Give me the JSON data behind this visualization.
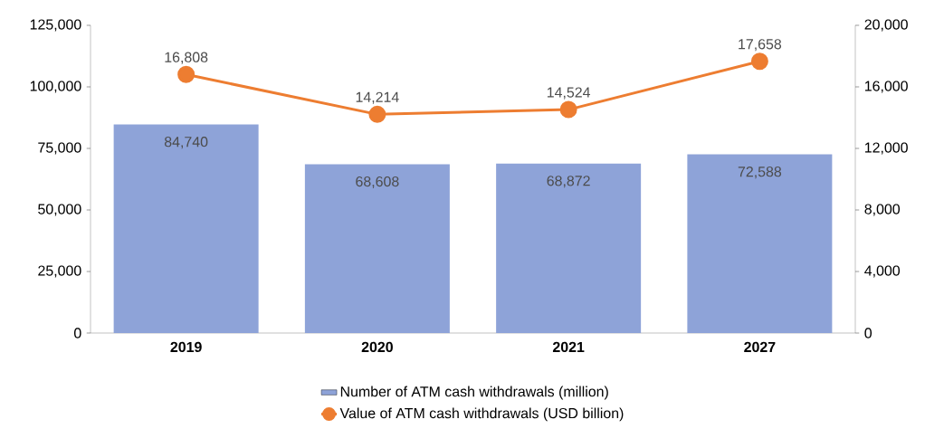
{
  "chart_data": {
    "type": "bar",
    "categories": [
      "2019",
      "2020",
      "2021",
      "2027"
    ],
    "series": [
      {
        "name": "Number of ATM cash withdrawals (million)",
        "color": "#8ea3d8",
        "values": [
          84740,
          68608,
          68872,
          72588
        ],
        "value_labels": [
          "84,740",
          "68,608",
          "68,872",
          "72,588"
        ]
      },
      {
        "name": "Value of ATM cash withdrawals (USD billion)",
        "type": "line",
        "axis": "y2",
        "color": "#ed7d31",
        "values": [
          16808,
          14214,
          14524,
          17658
        ],
        "value_labels": [
          "16,808",
          "14,214",
          "14,524",
          "17,658"
        ]
      }
    ],
    "ylim": [
      0,
      125000
    ],
    "yticks": [
      {
        "value": 0,
        "label": "0"
      },
      {
        "value": 25000,
        "label": "25,000"
      },
      {
        "value": 50000,
        "label": "50,000"
      },
      {
        "value": 75000,
        "label": "75,000"
      },
      {
        "value": 100000,
        "label": "100,000"
      },
      {
        "value": 125000,
        "label": "125,000"
      }
    ],
    "y2lim": [
      0,
      20000
    ],
    "y2ticks": [
      {
        "value": 0,
        "label": "0"
      },
      {
        "value": 4000,
        "label": "4,000"
      },
      {
        "value": 8000,
        "label": "8,000"
      },
      {
        "value": 12000,
        "label": "12,000"
      },
      {
        "value": 16000,
        "label": "16,000"
      },
      {
        "value": 20000,
        "label": "20,000"
      }
    ],
    "marker": "circle",
    "legend": "bottom",
    "grid": false
  }
}
